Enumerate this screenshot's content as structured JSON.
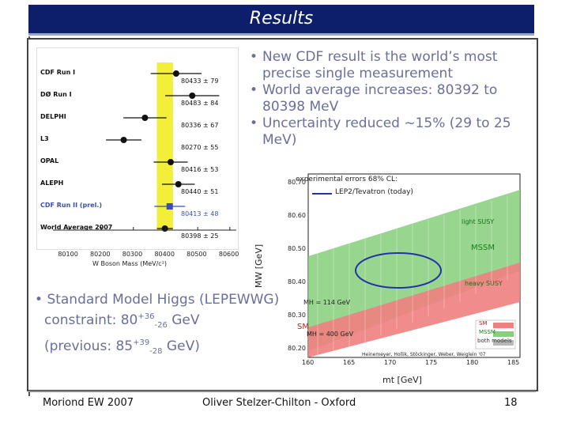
{
  "slide": {
    "title": "Results",
    "bullets": [
      "New CDF result is the world’s most precise single measurement",
      "World average increases: 80392 to 80398 MeV",
      "Uncertainty reduced ~15% (29 to 25 MeV)"
    ],
    "higgs": {
      "line1": "Standard Model Higgs (LEPEWWG)",
      "c_prefix": "constraint: 80",
      "c_sup": "+36",
      "c_sub": "-26",
      "c_suffix": " GeV",
      "p_prefix": "(previous: 85",
      "p_sup": "+39",
      "p_sub": "-28",
      "p_suffix": " GeV)"
    },
    "footer": {
      "left": "Moriond EW 2007",
      "center": "Oliver Stelzer-Chilton - Oxford",
      "page": "18"
    }
  },
  "wmass_plot": {
    "experiments": [
      {
        "name": "CDF Run I",
        "value": 80433,
        "err": 79,
        "label": "80433 ± 79"
      },
      {
        "name": "DØ Run I",
        "value": 80483,
        "err": 84,
        "label": "80483 ± 84"
      },
      {
        "name": "DELPHI",
        "value": 80336,
        "err": 67,
        "label": "80336 ± 67"
      },
      {
        "name": "L3",
        "value": 80270,
        "err": 55,
        "label": "80270 ± 55"
      },
      {
        "name": "OPAL",
        "value": 80416,
        "err": 53,
        "label": "80416 ± 53"
      },
      {
        "name": "ALEPH",
        "value": 80440,
        "err": 51,
        "label": "80440 ± 51"
      },
      {
        "name": "CDF Run II (prel.)",
        "value": 80413,
        "err": 48,
        "label": "80413 ± 48"
      },
      {
        "name": "World Average 2007",
        "value": 80398,
        "err": 25,
        "label": "80398 ± 25"
      }
    ],
    "x_ticks": [
      "80100",
      "80200",
      "80300",
      "80400",
      "80500",
      "80600"
    ],
    "x_label": "W Boson Mass (MeV/c²)",
    "band_color": "#f2ee3a",
    "highlight_color": "#3a4fb0"
  },
  "mw_mt_plot": {
    "legend_1": "experimental errors 68% CL:",
    "legend_2": "LEP2/Tevatron (today)",
    "y_ticks": [
      "80.70",
      "80.60",
      "80.50",
      "80.40",
      "80.30",
      "80.20"
    ],
    "x_ticks": [
      "160",
      "165",
      "170",
      "175",
      "180",
      "185"
    ],
    "y_label": "MW [GeV]",
    "x_label": "mt [GeV]",
    "region_labels": [
      "light SUSY",
      "MSSM",
      "heavy SUSY",
      "SM",
      "MH = 114 GeV",
      "MH = 400 GeV"
    ],
    "key_labels": [
      "SM",
      "MSSM",
      "both models"
    ],
    "credit": "Heinemeyer, Hollik, Stöckinger, Weber, Weiglein '07"
  }
}
